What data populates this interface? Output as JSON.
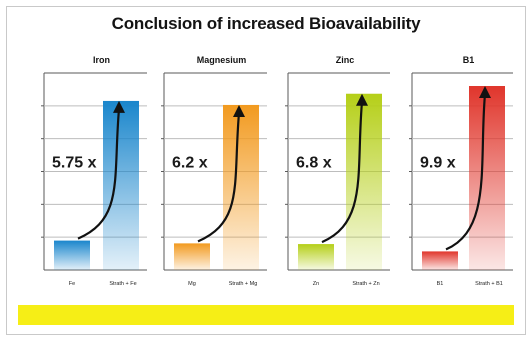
{
  "title": "Conclusion of increased Bioavailability",
  "colors": {
    "footer": "#f6ee16",
    "iron": "#1a86cc",
    "magnesium": "#f29a1f",
    "zinc": "#b5cf18",
    "b1": "#e0352b"
  },
  "chart_data": [
    {
      "type": "bar",
      "title": "Iron",
      "categories": [
        "Fe",
        "Strath + Fe"
      ],
      "values": [
        1,
        5.75
      ],
      "annotation": "5.75 x",
      "ylim": [
        0,
        6.7
      ],
      "color": "#1a86cc",
      "grid": true
    },
    {
      "type": "bar",
      "title": "Magnesium",
      "categories": [
        "Mg",
        "Strath + Mg"
      ],
      "values": [
        1,
        6.2
      ],
      "annotation": "6.2 x",
      "ylim": [
        0,
        7.4
      ],
      "color": "#f29a1f",
      "grid": true
    },
    {
      "type": "bar",
      "title": "Zinc",
      "categories": [
        "Zn",
        "Strath + Zn"
      ],
      "values": [
        1,
        6.8
      ],
      "annotation": "6.8 x",
      "ylim": [
        0,
        7.6
      ],
      "color": "#b5cf18",
      "grid": true
    },
    {
      "type": "bar",
      "title": "B1",
      "categories": [
        "B1",
        "Strath + B1"
      ],
      "values": [
        1,
        9.9
      ],
      "annotation": "9.9 x",
      "ylim": [
        0,
        10.6
      ],
      "color": "#e0352b",
      "grid": true
    }
  ]
}
